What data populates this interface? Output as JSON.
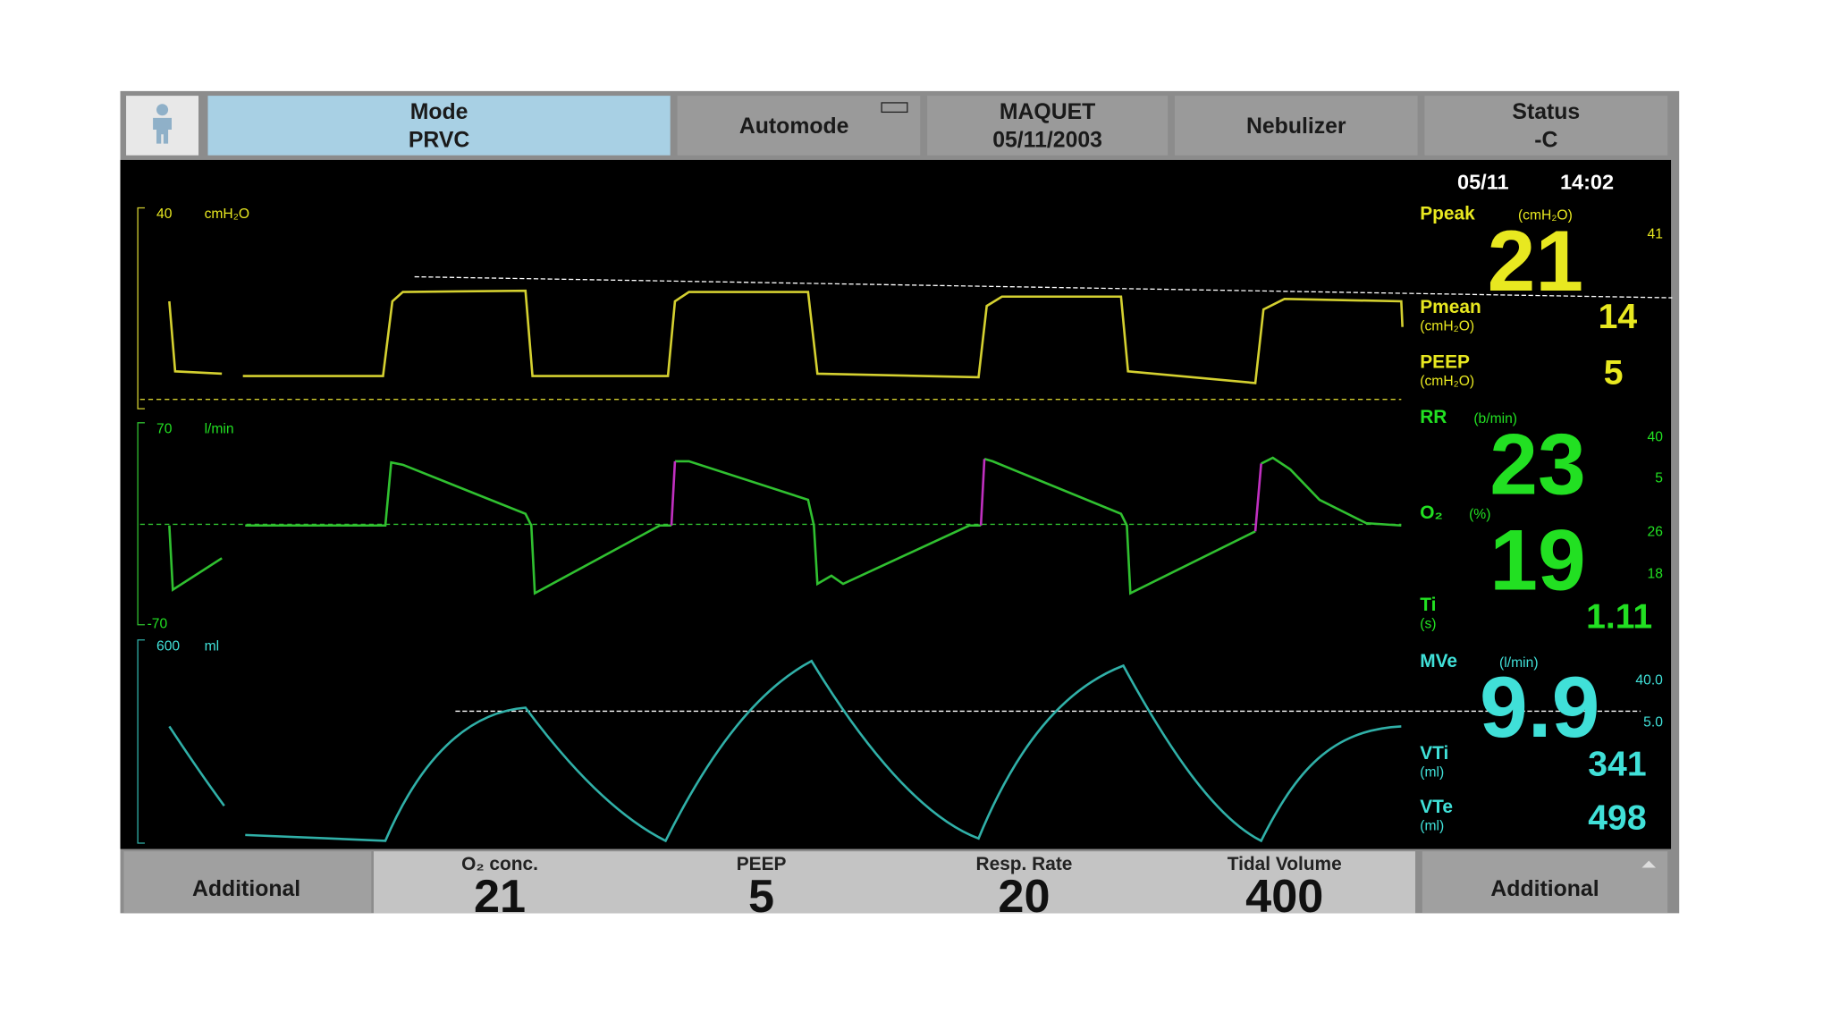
{
  "header": {
    "mode_label": "Mode",
    "mode": "PRVC",
    "automode": "Automode",
    "brand": "MAQUET",
    "date": "05/11/2003",
    "nebulizer": "Nebulizer",
    "status_label": "Status",
    "status": "-C"
  },
  "clock": {
    "date": "05/11",
    "time": "14:02"
  },
  "waveforms": {
    "pressure": {
      "max": "40",
      "unit": "cmH₂O"
    },
    "flow": {
      "max": "70",
      "unit": "l/min",
      "min": "-70"
    },
    "volume": {
      "max": "600",
      "unit": "ml"
    }
  },
  "readouts": {
    "ppeak": {
      "label": "Ppeak",
      "unit": "(cmH₂O)",
      "value": "21",
      "limit": "41"
    },
    "pmean": {
      "label": "Pmean",
      "unit": "(cmH₂O)",
      "value": "14"
    },
    "peep": {
      "label": "PEEP",
      "unit": "(cmH₂O)",
      "value": "5"
    },
    "rr": {
      "label": "RR",
      "unit": "(b/min)",
      "value": "23",
      "limits": [
        "40",
        "5"
      ]
    },
    "o2": {
      "label": "O₂",
      "unit": "(%)",
      "value": "19",
      "limits": [
        "26",
        "18"
      ]
    },
    "ti": {
      "label": "Ti",
      "unit": "(s)",
      "value": "1.11"
    },
    "mve": {
      "label": "MVe",
      "unit": "(l/min)",
      "value": "9.9",
      "limits": [
        "40.0",
        "5.0"
      ]
    },
    "vti": {
      "label": "VTi",
      "unit": "(ml)",
      "value": "341"
    },
    "vte": {
      "label": "VTe",
      "unit": "(ml)",
      "value": "498"
    }
  },
  "bottom": {
    "left": "Additional",
    "settings": [
      {
        "label": "O₂ conc.",
        "value": "21"
      },
      {
        "label": "PEEP",
        "value": "5"
      },
      {
        "label": "Resp. Rate",
        "value": "20"
      },
      {
        "label": "Tidal Volume",
        "value": "400"
      }
    ],
    "right": "Additional"
  }
}
